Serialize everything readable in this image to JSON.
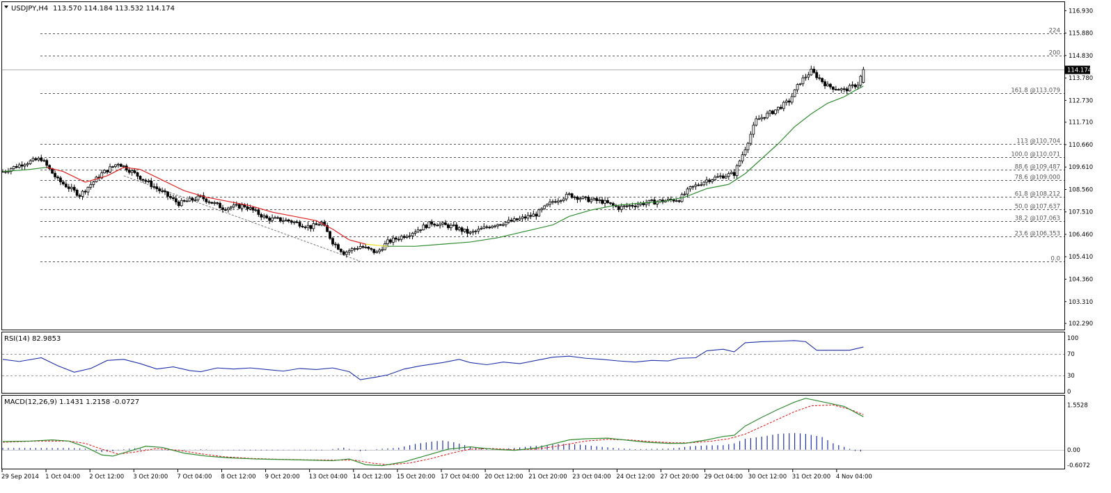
{
  "header": {
    "symbol": "USDJPY,H4",
    "ohlc": "113.570 114.184 113.532 114.174"
  },
  "price_panel": {
    "current_price": "114.174",
    "y_ticks": [
      "116.930",
      "115.880",
      "114.830",
      "113.780",
      "112.730",
      "111.710",
      "110.660",
      "109.610",
      "108.560",
      "107.510",
      "106.460",
      "105.410",
      "104.360",
      "103.310",
      "102.290"
    ],
    "fib_levels": [
      {
        "label": "224",
        "value": 115.88
      },
      {
        "label": "200",
        "value": 114.83
      },
      {
        "label": "161.8  @113.079",
        "value": 113.079
      },
      {
        "label": "113  @110.704",
        "value": 110.704
      },
      {
        "label": "100.0  @110.071",
        "value": 110.071
      },
      {
        "label": "88.6  @109.487",
        "value": 109.487
      },
      {
        "label": "78.6  @109.000",
        "value": 109.0
      },
      {
        "label": "61.8  @108.212",
        "value": 108.212
      },
      {
        "label": "50.0  @107.637",
        "value": 107.637
      },
      {
        "label": "38.2  @107.063",
        "value": 107.063
      },
      {
        "label": "23.6  @106.353",
        "value": 106.353
      },
      {
        "label": "0.0",
        "value": 105.2
      }
    ]
  },
  "rsi_panel": {
    "label": "RSI(14) 82.9853",
    "y_ticks": [
      "100",
      "70",
      "30",
      "0"
    ]
  },
  "macd_panel": {
    "label": "MACD(12,26,9) 1.1431 1.2158 -0.0727",
    "y_ticks": [
      "1.5528",
      "0.00",
      "-0.6072"
    ]
  },
  "x_ticks": [
    "29 Sep 2014",
    "1 Oct 04:00",
    "2 Oct 12:00",
    "3 Oct 20:00",
    "7 Oct 04:00",
    "8 Oct 12:00",
    "9 Oct 20:00",
    "13 Oct 04:00",
    "14 Oct 12:00",
    "15 Oct 20:00",
    "17 Oct 04:00",
    "20 Oct 12:00",
    "21 Oct 20:00",
    "23 Oct 04:00",
    "24 Oct 12:00",
    "27 Oct 20:00",
    "29 Oct 04:00",
    "30 Oct 12:00",
    "31 Oct 20:00",
    "4 Nov 04:00"
  ],
  "chart_data": [
    {
      "type": "candlestick",
      "title": "USDJPY,H4",
      "ylim": [
        102.0,
        117.3
      ],
      "x_step_hours": 4,
      "close_path": [
        [
          0,
          109.4
        ],
        [
          8,
          109.8
        ],
        [
          14,
          110.0
        ],
        [
          20,
          109.0
        ],
        [
          28,
          108.3
        ],
        [
          36,
          109.3
        ],
        [
          42,
          109.8
        ],
        [
          48,
          109.3
        ],
        [
          56,
          108.6
        ],
        [
          64,
          107.9
        ],
        [
          72,
          108.2
        ],
        [
          80,
          107.7
        ],
        [
          88,
          107.8
        ],
        [
          96,
          107.2
        ],
        [
          104,
          107.1
        ],
        [
          112,
          106.8
        ],
        [
          116,
          107.0
        ],
        [
          120,
          106.1
        ],
        [
          124,
          105.6
        ],
        [
          130,
          105.9
        ],
        [
          136,
          105.6
        ],
        [
          140,
          106.1
        ],
        [
          148,
          106.5
        ],
        [
          156,
          107.0
        ],
        [
          164,
          106.8
        ],
        [
          170,
          106.5
        ],
        [
          178,
          106.9
        ],
        [
          186,
          107.1
        ],
        [
          194,
          107.4
        ],
        [
          200,
          108.0
        ],
        [
          206,
          108.3
        ],
        [
          212,
          108.1
        ],
        [
          218,
          108.0
        ],
        [
          224,
          107.7
        ],
        [
          232,
          107.9
        ],
        [
          238,
          108.0
        ],
        [
          246,
          108.1
        ],
        [
          250,
          108.6
        ],
        [
          256,
          109.0
        ],
        [
          262,
          109.2
        ],
        [
          266,
          109.3
        ],
        [
          270,
          110.5
        ],
        [
          274,
          111.8
        ],
        [
          280,
          112.2
        ],
        [
          286,
          112.7
        ],
        [
          290,
          113.6
        ],
        [
          294,
          114.1
        ],
        [
          300,
          113.4
        ],
        [
          306,
          113.2
        ],
        [
          311,
          113.5
        ],
        [
          313,
          114.17
        ]
      ],
      "ma_path": [
        [
          0,
          109.4
        ],
        [
          10,
          109.5
        ],
        [
          16,
          109.6
        ],
        [
          22,
          109.4
        ],
        [
          30,
          108.9
        ],
        [
          38,
          109.2
        ],
        [
          44,
          109.6
        ],
        [
          50,
          109.5
        ],
        [
          58,
          109.0
        ],
        [
          66,
          108.5
        ],
        [
          74,
          108.2
        ],
        [
          82,
          108.0
        ],
        [
          90,
          107.8
        ],
        [
          98,
          107.5
        ],
        [
          106,
          107.3
        ],
        [
          114,
          107.1
        ],
        [
          120,
          106.7
        ],
        [
          126,
          106.2
        ],
        [
          132,
          106.0
        ],
        [
          140,
          105.9
        ],
        [
          150,
          105.9
        ],
        [
          160,
          106.0
        ],
        [
          170,
          106.1
        ],
        [
          180,
          106.3
        ],
        [
          190,
          106.6
        ],
        [
          200,
          106.9
        ],
        [
          206,
          107.3
        ],
        [
          214,
          107.6
        ],
        [
          222,
          107.8
        ],
        [
          230,
          107.9
        ],
        [
          240,
          108.0
        ],
        [
          248,
          108.2
        ],
        [
          256,
          108.6
        ],
        [
          264,
          108.8
        ],
        [
          270,
          109.3
        ],
        [
          276,
          110.0
        ],
        [
          282,
          110.7
        ],
        [
          288,
          111.5
        ],
        [
          294,
          112.1
        ],
        [
          300,
          112.6
        ],
        [
          306,
          112.9
        ],
        [
          310,
          113.2
        ],
        [
          313,
          113.4
        ]
      ],
      "ma_color_breaks": [
        [
          0,
          "#2e8b2e"
        ],
        [
          14,
          "#e02020"
        ],
        [
          132,
          "#e8e020"
        ],
        [
          136,
          "#2e8b2e"
        ]
      ],
      "trendline": [
        [
          44,
          109.2
        ],
        [
          130,
          105.2
        ]
      ],
      "price_line": 114.174
    },
    {
      "type": "line",
      "title": "RSI(14) 82.9853",
      "ylim": [
        0,
        100
      ],
      "levels": [
        70,
        30
      ],
      "points": [
        [
          0,
          60
        ],
        [
          6,
          56
        ],
        [
          14,
          63
        ],
        [
          20,
          48
        ],
        [
          26,
          36
        ],
        [
          32,
          43
        ],
        [
          38,
          58
        ],
        [
          44,
          60
        ],
        [
          50,
          52
        ],
        [
          56,
          42
        ],
        [
          62,
          46
        ],
        [
          68,
          39
        ],
        [
          72,
          37
        ],
        [
          78,
          44
        ],
        [
          84,
          42
        ],
        [
          90,
          44
        ],
        [
          96,
          41
        ],
        [
          102,
          38
        ],
        [
          108,
          43
        ],
        [
          114,
          41
        ],
        [
          120,
          44
        ],
        [
          126,
          37
        ],
        [
          130,
          22
        ],
        [
          136,
          27
        ],
        [
          140,
          31
        ],
        [
          146,
          42
        ],
        [
          152,
          48
        ],
        [
          160,
          54
        ],
        [
          166,
          60
        ],
        [
          170,
          54
        ],
        [
          176,
          50
        ],
        [
          182,
          55
        ],
        [
          188,
          52
        ],
        [
          194,
          58
        ],
        [
          200,
          64
        ],
        [
          206,
          66
        ],
        [
          212,
          62
        ],
        [
          218,
          60
        ],
        [
          224,
          57
        ],
        [
          230,
          55
        ],
        [
          236,
          58
        ],
        [
          242,
          57
        ],
        [
          246,
          62
        ],
        [
          252,
          63
        ],
        [
          256,
          76
        ],
        [
          262,
          79
        ],
        [
          266,
          74
        ],
        [
          270,
          91
        ],
        [
          276,
          93
        ],
        [
          282,
          94
        ],
        [
          288,
          95
        ],
        [
          292,
          93
        ],
        [
          296,
          77
        ],
        [
          302,
          77
        ],
        [
          308,
          77
        ],
        [
          313,
          82.99
        ]
      ],
      "color": "#1c2fa8"
    },
    {
      "type": "bar",
      "title": "MACD(12,26,9) 1.1431 1.2158 -0.0727",
      "ylim": [
        -0.6072,
        1.8
      ],
      "histogram": [
        [
          0,
          0.06
        ],
        [
          24,
          0.06
        ],
        [
          30,
          0.04
        ],
        [
          36,
          -0.08
        ],
        [
          40,
          -0.05
        ],
        [
          44,
          0.02
        ],
        [
          48,
          0.05
        ],
        [
          56,
          -0.01
        ],
        [
          64,
          -0.03
        ],
        [
          72,
          0.02
        ],
        [
          80,
          -0.01
        ],
        [
          88,
          -0.02
        ],
        [
          96,
          -0.02
        ],
        [
          104,
          -0.01
        ],
        [
          116,
          -0.02
        ],
        [
          124,
          0.07
        ],
        [
          130,
          -0.05
        ],
        [
          136,
          0.02
        ],
        [
          144,
          0.07
        ],
        [
          150,
          0.2
        ],
        [
          156,
          0.28
        ],
        [
          160,
          0.32
        ],
        [
          164,
          0.26
        ],
        [
          168,
          0.16
        ],
        [
          172,
          0.06
        ],
        [
          180,
          0.02
        ],
        [
          186,
          0.06
        ],
        [
          192,
          0.12
        ],
        [
          198,
          0.16
        ],
        [
          202,
          0.2
        ],
        [
          206,
          0.2
        ],
        [
          212,
          0.16
        ],
        [
          218,
          0.1
        ],
        [
          224,
          0.05
        ],
        [
          230,
          0.02
        ],
        [
          236,
          0.03
        ],
        [
          242,
          0.04
        ],
        [
          246,
          0.07
        ],
        [
          250,
          0.12
        ],
        [
          256,
          0.15
        ],
        [
          262,
          0.16
        ],
        [
          266,
          0.22
        ],
        [
          270,
          0.38
        ],
        [
          276,
          0.45
        ],
        [
          282,
          0.55
        ],
        [
          288,
          0.58
        ],
        [
          292,
          0.55
        ],
        [
          298,
          0.44
        ],
        [
          302,
          0.22
        ],
        [
          306,
          0.1
        ],
        [
          310,
          -0.04
        ],
        [
          313,
          -0.07
        ]
      ],
      "macd_line": [
        [
          0,
          0.28
        ],
        [
          10,
          0.3
        ],
        [
          18,
          0.34
        ],
        [
          24,
          0.3
        ],
        [
          30,
          0.1
        ],
        [
          36,
          -0.18
        ],
        [
          40,
          -0.22
        ],
        [
          46,
          -0.05
        ],
        [
          52,
          0.12
        ],
        [
          58,
          0.08
        ],
        [
          66,
          -0.12
        ],
        [
          74,
          -0.22
        ],
        [
          82,
          -0.28
        ],
        [
          92,
          -0.32
        ],
        [
          102,
          -0.34
        ],
        [
          112,
          -0.36
        ],
        [
          120,
          -0.38
        ],
        [
          126,
          -0.32
        ],
        [
          132,
          -0.52
        ],
        [
          138,
          -0.55
        ],
        [
          146,
          -0.42
        ],
        [
          154,
          -0.2
        ],
        [
          162,
          0.02
        ],
        [
          170,
          0.1
        ],
        [
          178,
          0.02
        ],
        [
          186,
          -0.02
        ],
        [
          194,
          0.06
        ],
        [
          200,
          0.2
        ],
        [
          206,
          0.34
        ],
        [
          212,
          0.38
        ],
        [
          220,
          0.4
        ],
        [
          226,
          0.34
        ],
        [
          234,
          0.26
        ],
        [
          242,
          0.22
        ],
        [
          248,
          0.22
        ],
        [
          256,
          0.34
        ],
        [
          262,
          0.46
        ],
        [
          266,
          0.5
        ],
        [
          270,
          0.82
        ],
        [
          276,
          1.12
        ],
        [
          282,
          1.4
        ],
        [
          288,
          1.65
        ],
        [
          292,
          1.78
        ],
        [
          298,
          1.66
        ],
        [
          306,
          1.5
        ],
        [
          313,
          1.1431
        ]
      ],
      "signal_line": [
        [
          0,
          0.26
        ],
        [
          12,
          0.3
        ],
        [
          24,
          0.3
        ],
        [
          30,
          0.22
        ],
        [
          36,
          0.02
        ],
        [
          42,
          -0.15
        ],
        [
          48,
          -0.08
        ],
        [
          56,
          0.04
        ],
        [
          64,
          -0.02
        ],
        [
          72,
          -0.14
        ],
        [
          80,
          -0.24
        ],
        [
          90,
          -0.3
        ],
        [
          100,
          -0.33
        ],
        [
          110,
          -0.35
        ],
        [
          120,
          -0.36
        ],
        [
          128,
          -0.36
        ],
        [
          134,
          -0.46
        ],
        [
          140,
          -0.52
        ],
        [
          148,
          -0.46
        ],
        [
          156,
          -0.3
        ],
        [
          164,
          -0.1
        ],
        [
          170,
          0.02
        ],
        [
          178,
          0.04
        ],
        [
          186,
          0.0
        ],
        [
          194,
          0.02
        ],
        [
          200,
          0.1
        ],
        [
          206,
          0.2
        ],
        [
          212,
          0.3
        ],
        [
          220,
          0.36
        ],
        [
          228,
          0.34
        ],
        [
          236,
          0.28
        ],
        [
          244,
          0.24
        ],
        [
          250,
          0.24
        ],
        [
          258,
          0.3
        ],
        [
          264,
          0.38
        ],
        [
          270,
          0.54
        ],
        [
          276,
          0.8
        ],
        [
          282,
          1.06
        ],
        [
          288,
          1.32
        ],
        [
          294,
          1.52
        ],
        [
          302,
          1.55
        ],
        [
          308,
          1.4
        ],
        [
          313,
          1.2158
        ]
      ]
    }
  ]
}
